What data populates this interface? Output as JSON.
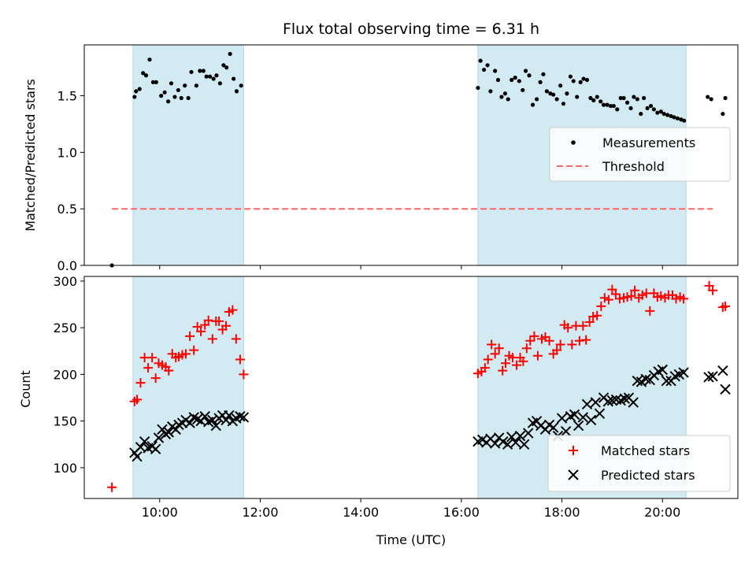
{
  "chart_data": {
    "type": "scatter",
    "title": "Flux total observing time = 6.31 h",
    "xlabel": "Time (UTC)",
    "x_unit": "hours UTC",
    "xlim": [
      8.5,
      21.5
    ],
    "xticks": [
      {
        "value": 10,
        "label": "10:00"
      },
      {
        "value": 12,
        "label": "12:00"
      },
      {
        "value": 14,
        "label": "14:00"
      },
      {
        "value": 16,
        "label": "16:00"
      },
      {
        "value": 18,
        "label": "18:00"
      },
      {
        "value": 20,
        "label": "20:00"
      }
    ],
    "shaded_intervals": [
      [
        9.47,
        11.67
      ],
      [
        16.33,
        20.47
      ]
    ],
    "colors": {
      "shade": "#add8e6",
      "threshold": "#ff6666",
      "matched": "#ff0000",
      "predicted": "#000000"
    },
    "panels": [
      {
        "name": "ratio",
        "ylabel": "Matched/Predicted stars",
        "ylim": [
          0,
          1.95
        ],
        "yticks": [
          {
            "value": 0,
            "label": "0.0"
          },
          {
            "value": 0.5,
            "label": "0.5"
          },
          {
            "value": 1.0,
            "label": "1.0"
          },
          {
            "value": 1.5,
            "label": "1.5"
          }
        ],
        "grid": false,
        "legend": {
          "position": "center-right",
          "entries": [
            {
              "label": "Measurements",
              "marker": "dot"
            },
            {
              "label": "Threshold",
              "marker": "dashed-line"
            }
          ]
        },
        "series": [
          {
            "name": "Measurements",
            "marker": "dot",
            "x": [
              9.05,
              9.5,
              9.53,
              9.6,
              9.67,
              9.73,
              9.8,
              9.87,
              9.93,
              10.03,
              10.1,
              10.17,
              10.23,
              10.3,
              10.37,
              10.43,
              10.5,
              10.57,
              10.63,
              10.73,
              10.8,
              10.87,
              10.93,
              11.0,
              11.07,
              11.13,
              11.2,
              11.27,
              11.33,
              11.4,
              11.47,
              11.53,
              11.62,
              16.33,
              16.38,
              16.45,
              16.52,
              16.58,
              16.67,
              16.73,
              16.8,
              16.87,
              16.93,
              17.0,
              17.07,
              17.15,
              17.22,
              17.28,
              17.35,
              17.42,
              17.5,
              17.57,
              17.63,
              17.7,
              17.77,
              17.83,
              17.9,
              17.97,
              18.03,
              18.1,
              18.17,
              18.23,
              18.3,
              18.37,
              18.43,
              18.5,
              18.57,
              18.63,
              18.7,
              18.77,
              18.83,
              18.9,
              18.97,
              19.03,
              19.1,
              19.17,
              19.23,
              19.3,
              19.37,
              19.43,
              19.5,
              19.57,
              19.63,
              19.7,
              19.77,
              19.83,
              19.9,
              19.97,
              20.03,
              20.1,
              20.17,
              20.23,
              20.3,
              20.37,
              20.43,
              20.9,
              20.97,
              21.2,
              21.25
            ],
            "y": [
              0.0,
              1.49,
              1.54,
              1.56,
              1.7,
              1.68,
              1.82,
              1.62,
              1.62,
              1.5,
              1.53,
              1.45,
              1.61,
              1.49,
              1.55,
              1.48,
              1.59,
              1.48,
              1.71,
              1.59,
              1.72,
              1.72,
              1.67,
              1.67,
              1.65,
              1.68,
              1.61,
              1.77,
              1.75,
              1.87,
              1.65,
              1.54,
              1.59,
              1.57,
              1.81,
              1.73,
              1.77,
              1.54,
              1.72,
              1.64,
              1.49,
              1.52,
              1.47,
              1.64,
              1.66,
              1.63,
              1.55,
              1.72,
              1.68,
              1.42,
              1.47,
              1.62,
              1.69,
              1.54,
              1.52,
              1.51,
              1.47,
              1.59,
              1.43,
              1.52,
              1.67,
              1.63,
              1.49,
              1.62,
              1.65,
              1.64,
              1.48,
              1.46,
              1.49,
              1.45,
              1.42,
              1.42,
              1.41,
              1.41,
              1.38,
              1.48,
              1.48,
              1.44,
              1.39,
              1.49,
              1.47,
              1.34,
              1.48,
              1.39,
              1.41,
              1.38,
              1.35,
              1.36,
              1.34,
              1.33,
              1.32,
              1.31,
              1.3,
              1.29,
              1.28,
              1.49,
              1.47,
              1.34,
              1.48
            ]
          },
          {
            "name": "Threshold",
            "marker": "dashed-line",
            "x": [
              9.05,
              21.0
            ],
            "y": [
              0.5,
              0.5
            ]
          }
        ]
      },
      {
        "name": "counts",
        "ylabel": "Count",
        "ylim": [
          67,
          305
        ],
        "yticks": [
          {
            "value": 100,
            "label": "100"
          },
          {
            "value": 150,
            "label": "150"
          },
          {
            "value": 200,
            "label": "200"
          },
          {
            "value": 250,
            "label": "250"
          },
          {
            "value": 300,
            "label": "300"
          }
        ],
        "grid": false,
        "legend": {
          "position": "lower-right",
          "entries": [
            {
              "label": "Matched stars",
              "marker": "plus"
            },
            {
              "label": "Predicted stars",
              "marker": "x"
            }
          ]
        },
        "series": [
          {
            "name": "Matched stars",
            "marker": "plus",
            "x": [
              9.05,
              9.5,
              9.55,
              9.62,
              9.7,
              9.77,
              9.85,
              9.92,
              9.98,
              10.05,
              10.12,
              10.18,
              10.25,
              10.32,
              10.38,
              10.45,
              10.52,
              10.6,
              10.68,
              10.75,
              10.82,
              10.9,
              10.97,
              11.05,
              11.12,
              11.18,
              11.25,
              11.32,
              11.38,
              11.45,
              11.52,
              11.6,
              11.67,
              16.33,
              16.4,
              16.47,
              16.53,
              16.6,
              16.67,
              16.75,
              16.82,
              16.88,
              16.95,
              17.02,
              17.1,
              17.17,
              17.23,
              17.3,
              17.37,
              17.45,
              17.52,
              17.6,
              17.67,
              17.75,
              17.83,
              17.9,
              17.97,
              18.05,
              18.12,
              18.2,
              18.28,
              18.35,
              18.42,
              18.48,
              18.55,
              18.62,
              18.7,
              18.78,
              18.85,
              18.93,
              19.0,
              19.07,
              19.15,
              19.23,
              19.3,
              19.38,
              19.45,
              19.53,
              19.6,
              19.68,
              19.75,
              19.83,
              19.9,
              19.97,
              20.05,
              20.12,
              20.2,
              20.27,
              20.35,
              20.42,
              20.93,
              21.0,
              21.2,
              21.25
            ],
            "y": [
              79,
              171,
              173,
              191,
              218,
              207,
              218,
              196,
              212,
              210,
              208,
              204,
              222,
              218,
              219,
              221,
              222,
              241,
              226,
              251,
              246,
              253,
              258,
              238,
              257,
              257,
              248,
              252,
              267,
              269,
              238,
              216,
              200,
              201,
              203,
              207,
              216,
              232,
              222,
              228,
              204,
              212,
              220,
              218,
              210,
              218,
              214,
              228,
              236,
              241,
              220,
              238,
              240,
              236,
              222,
              226,
              232,
              253,
              250,
              232,
              252,
              236,
              252,
              237,
              256,
              262,
              263,
              273,
              282,
              280,
              291,
              286,
              281,
              282,
              283,
              284,
              290,
              282,
              285,
              287,
              268,
              287,
              283,
              284,
              282,
              285,
              285,
              281,
              283,
              281,
              295,
              290,
              272,
              273
            ]
          },
          {
            "name": "Predicted stars",
            "marker": "x",
            "x": [
              9.5,
              9.55,
              9.62,
              9.7,
              9.77,
              9.85,
              9.92,
              9.98,
              10.05,
              10.12,
              10.18,
              10.25,
              10.32,
              10.38,
              10.45,
              10.52,
              10.6,
              10.68,
              10.75,
              10.82,
              10.9,
              10.97,
              11.05,
              11.12,
              11.18,
              11.25,
              11.32,
              11.38,
              11.45,
              11.52,
              11.6,
              11.67,
              16.33,
              16.42,
              16.5,
              16.58,
              16.67,
              16.75,
              16.83,
              16.92,
              17.0,
              17.08,
              17.17,
              17.25,
              17.33,
              17.42,
              17.5,
              17.58,
              17.67,
              17.75,
              17.83,
              17.92,
              18.0,
              18.08,
              18.17,
              18.25,
              18.33,
              18.42,
              18.5,
              18.58,
              18.67,
              18.75,
              18.83,
              18.92,
              19.0,
              19.08,
              19.17,
              19.25,
              19.33,
              19.42,
              19.5,
              19.58,
              19.67,
              19.75,
              19.83,
              19.92,
              20.0,
              20.08,
              20.17,
              20.25,
              20.33,
              20.42,
              20.92,
              21.0,
              21.2,
              21.25
            ],
            "y": [
              116,
              112,
              122,
              128,
              121,
              123,
              120,
              132,
              141,
              136,
              138,
              144,
              141,
              146,
              148,
              151,
              148,
              154,
              152,
              150,
              155,
              149,
              151,
              145,
              153,
              156,
              151,
              156,
              150,
              153,
              155,
              154,
              128,
              130,
              127,
              131,
              126,
              132,
              128,
              125,
              133,
              127,
              134,
              125,
              137,
              148,
              150,
              145,
              141,
              146,
              143,
              134,
              153,
              139,
              155,
              157,
              145,
              154,
              168,
              151,
              170,
              158,
              175,
              171,
              172,
              173,
              172,
              174,
              175,
              170,
              193,
              192,
              195,
              194,
              199,
              203,
              205,
              193,
              193,
              198,
              200,
              202,
              197,
              198,
              204,
              184
            ]
          }
        ]
      }
    ]
  }
}
